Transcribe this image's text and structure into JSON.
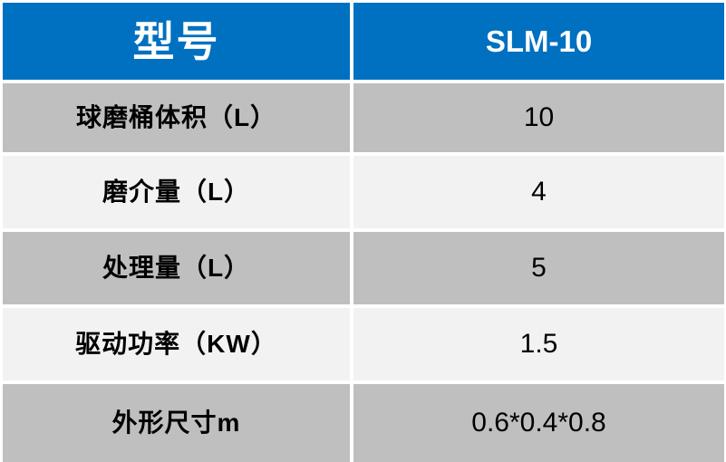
{
  "chart_data": {
    "type": "table",
    "header": {
      "label": "型号",
      "value": "SLM-10"
    },
    "rows": [
      {
        "label": "球磨桶体积（L）",
        "value": "10"
      },
      {
        "label": "磨介量（L）",
        "value": "4"
      },
      {
        "label": "处理量（L）",
        "value": "5"
      },
      {
        "label": "驱动功率（KW）",
        "value": "1.5"
      },
      {
        "label": "外形尺寸m",
        "value": "0.6*0.4*0.8"
      }
    ],
    "colors": {
      "header_bg": "#0070C0",
      "header_text": "#FFFFFF",
      "band_dark": "#BFBFBF",
      "band_light": "#F2F2F2",
      "text": "#000000",
      "background": "#FFFFFF"
    },
    "layout": {
      "header_position": "top row",
      "row_banding": "dark / light alternating",
      "cell_alignment": "center",
      "grid_lines": "white gaps between cells"
    }
  }
}
